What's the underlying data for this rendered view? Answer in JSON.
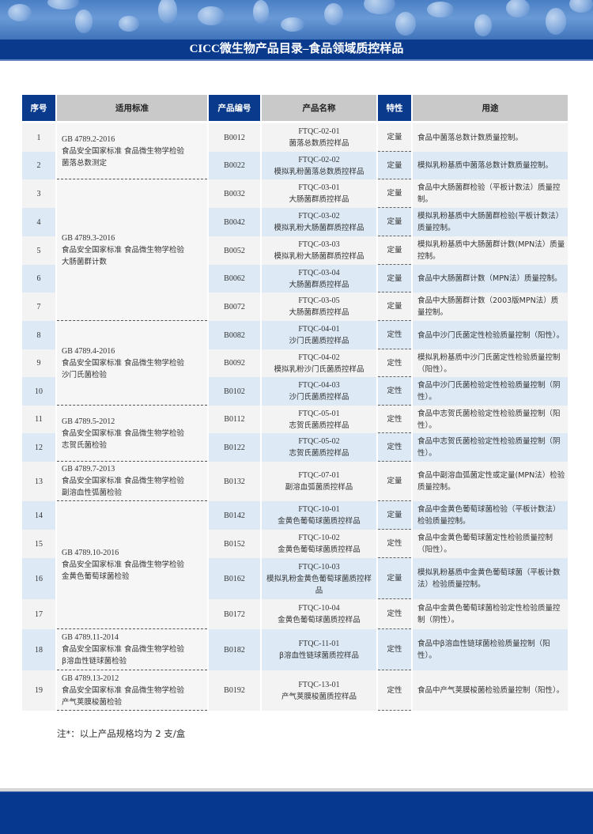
{
  "title": "CICC微生物产品目录–食品领域质控样品",
  "headers": [
    "序号",
    "适用标准",
    "产品编号",
    "产品名称",
    "特性",
    "用途"
  ],
  "colors": {
    "brand_blue": "#0a3a8c",
    "header_grey": "#c9c9c9",
    "row_blue": "#ddeaf6",
    "row_grey": "#f3f3f3",
    "footer_blue": "#073890"
  },
  "standards": [
    {
      "code": "GB 4789.2-2016",
      "line1": "食品安全国家标准  食品微生物学检验",
      "line2": "菌落总数测定",
      "rows": 2
    },
    {
      "code": "GB 4789.3-2016",
      "line1": "食品安全国家标准  食品微生物学检验",
      "line2": "大肠菌群计数",
      "rows": 5
    },
    {
      "code": "GB 4789.4-2016",
      "line1": "食品安全国家标准  食品微生物学检验",
      "line2": "沙门氏菌检验",
      "rows": 3
    },
    {
      "code": "GB 4789.5-2012",
      "line1": "食品安全国家标准  食品微生物学检验",
      "line2": "志贺氏菌检验",
      "rows": 2
    },
    {
      "code": "GB 4789.7-2013",
      "line1": "食品安全国家标准  食品微生物学检验",
      "line2": "副溶血性弧菌检验",
      "rows": 1
    },
    {
      "code": "GB 4789.10-2016",
      "line1": "食品安全国家标准  食品微生物学检验",
      "line2": "金黄色葡萄球菌检验",
      "rows": 4
    },
    {
      "code": "GB 4789.11-2014",
      "line1": "食品安全国家标准  食品微生物学检验",
      "line2": "β溶血性链球菌检验",
      "rows": 1
    },
    {
      "code": "GB 4789.13-2012",
      "line1": "食品安全国家标准  食品微生物学检验",
      "line2": "产气荚膜梭菌检验",
      "rows": 1
    }
  ],
  "rows": [
    {
      "no": "1",
      "code": "B0012",
      "name_code": "FTQC-02-01",
      "name": "菌落总数质控样品",
      "prop": "定量",
      "use": "食品中菌落总数计数质量控制。"
    },
    {
      "no": "2",
      "code": "B0022",
      "name_code": "FTQC-02-02",
      "name": "模拟乳粉菌落总数质控样品",
      "prop": "定量",
      "use": "模拟乳粉基质中菌落总数计数质量控制。"
    },
    {
      "no": "3",
      "code": "B0032",
      "name_code": "FTQC-03-01",
      "name": "大肠菌群质控样品",
      "prop": "定量",
      "use": "食品中大肠菌群检验（平板计数法）质量控制。"
    },
    {
      "no": "4",
      "code": "B0042",
      "name_code": "FTQC-03-02",
      "name": "模拟乳粉大肠菌群质控样品",
      "prop": "定量",
      "use": "模拟乳粉基质中大肠菌群检验(平板计数法）质量控制。"
    },
    {
      "no": "5",
      "code": "B0052",
      "name_code": "FTQC-03-03",
      "name": "模拟乳粉大肠菌群质控样品",
      "prop": "定量",
      "use": "模拟乳粉基质中大肠菌群计数(MPN法）质量控制。"
    },
    {
      "no": "6",
      "code": "B0062",
      "name_code": "FTQC-03-04",
      "name": "大肠菌群质控样品",
      "prop": "定量",
      "use": "食品中大肠菌群计数（MPN法）质量控制。"
    },
    {
      "no": "7",
      "code": "B0072",
      "name_code": "FTQC-03-05",
      "name": "大肠菌群质控样品",
      "prop": "定量",
      "use": "食品中大肠菌群计数（2003版MPN法）质量控制。"
    },
    {
      "no": "8",
      "code": "B0082",
      "name_code": "FTQC-04-01",
      "name": "沙门氏菌质控样品",
      "prop": "定性",
      "use": "食品中沙门氏菌定性检验质量控制（阳性）。"
    },
    {
      "no": "9",
      "code": "B0092",
      "name_code": "FTQC-04-02",
      "name": "模拟乳粉沙门氏菌质控样品",
      "prop": "定性",
      "use": "模拟乳粉基质中沙门氏菌定性检验质量控制（阳性）。"
    },
    {
      "no": "10",
      "code": "B0102",
      "name_code": "FTQC-04-03",
      "name": "沙门氏菌质控样品",
      "prop": "定性",
      "use": "食品中沙门氏菌检验定性检验质量控制（阴性）。"
    },
    {
      "no": "11",
      "code": "B0112",
      "name_code": "FTQC-05-01",
      "name": "志贺氏菌质控样品",
      "prop": "定性",
      "use": "食品中志贺氏菌检验定性检验质量控制（阳性）。"
    },
    {
      "no": "12",
      "code": "B0122",
      "name_code": "FTQC-05-02",
      "name": "志贺氏菌质控样品",
      "prop": "定性",
      "use": "食品中志贺氏菌检验定性检验质量控制（阴性）。"
    },
    {
      "no": "13",
      "code": "B0132",
      "name_code": "FTQC-07-01",
      "name": "副溶血弧菌质控样品",
      "prop": "定量",
      "use": "食品中副溶血弧菌定性或定量(MPN法）检验质量控制。"
    },
    {
      "no": "14",
      "code": "B0142",
      "name_code": "FTQC-10-01",
      "name": "金黄色葡萄球菌质控样品",
      "prop": "定量",
      "use": "食品中金黄色葡萄球菌检验（平板计数法）检验质量控制。"
    },
    {
      "no": "15",
      "code": "B0152",
      "name_code": "FTQC-10-02",
      "name": "金黄色葡萄球菌质控样品",
      "prop": "定性",
      "use": "食品中金黄色葡萄球菌定性检验质量控制（阳性）。"
    },
    {
      "no": "16",
      "code": "B0162",
      "name_code": "FTQC-10-03",
      "name": "模拟乳粉金黄色葡萄球菌质控样品",
      "prop": "定量",
      "use": "模拟乳粉基质中金黄色葡萄球菌（平板计数法）检验质量控制。"
    },
    {
      "no": "17",
      "code": "B0172",
      "name_code": "FTQC-10-04",
      "name": "金黄色葡萄球菌质控样品",
      "prop": "定性",
      "use": "食品中金黄色葡萄球菌检验定性检验质量控制（阴性）。"
    },
    {
      "no": "18",
      "code": "B0182",
      "name_code": "FTQC-11-01",
      "name": "β溶血性链球菌质控样品",
      "prop": "定性",
      "use": "食品中β溶血性链球菌检验质量控制（阳性）。"
    },
    {
      "no": "19",
      "code": "B0192",
      "name_code": "FTQC-13-01",
      "name": "产气荚膜梭菌质控样品",
      "prop": "定性",
      "use": "食品中产气荚膜梭菌检验质量控制（阳性）。"
    }
  ],
  "note": "注*：以上产品规格均为 2 支/盒"
}
